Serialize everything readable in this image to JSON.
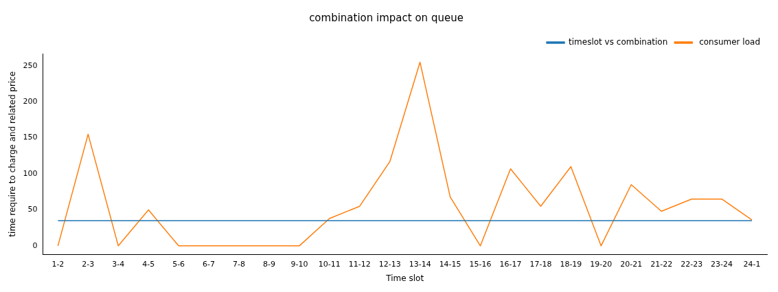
{
  "chart_data": {
    "type": "line",
    "title": "combination impact on queue",
    "xlabel": "Time slot",
    "ylabel": "time require to charge and related price",
    "categories": [
      "1-2",
      "2-3",
      "3-4",
      "4-5",
      "5-6",
      "6-7",
      "7-8",
      "8-9",
      "9-10",
      "10-11",
      "11-12",
      "12-13",
      "13-14",
      "14-15",
      "15-16",
      "16-17",
      "17-18",
      "18-19",
      "19-20",
      "20-21",
      "21-22",
      "22-23",
      "23-24",
      "24-1"
    ],
    "series": [
      {
        "name": "timeslot vs combination",
        "color": "#1f77b4",
        "values": [
          35,
          35,
          35,
          35,
          35,
          35,
          35,
          35,
          35,
          35,
          35,
          35,
          35,
          35,
          35,
          35,
          35,
          35,
          35,
          35,
          35,
          35,
          35,
          35
        ]
      },
      {
        "name": " consumer load",
        "color": "#ff7f0e",
        "values": [
          0,
          155,
          0,
          50,
          0,
          0,
          0,
          0,
          0,
          38,
          55,
          117,
          255,
          68,
          0,
          107,
          55,
          110,
          0,
          85,
          48,
          65,
          65,
          36
        ]
      }
    ],
    "ylim": [
      -12,
      267
    ],
    "yticks": [
      0,
      50,
      100,
      150,
      200,
      250
    ],
    "grid": false,
    "legend": "top right",
    "marker": "none",
    "line_style": "solid"
  }
}
